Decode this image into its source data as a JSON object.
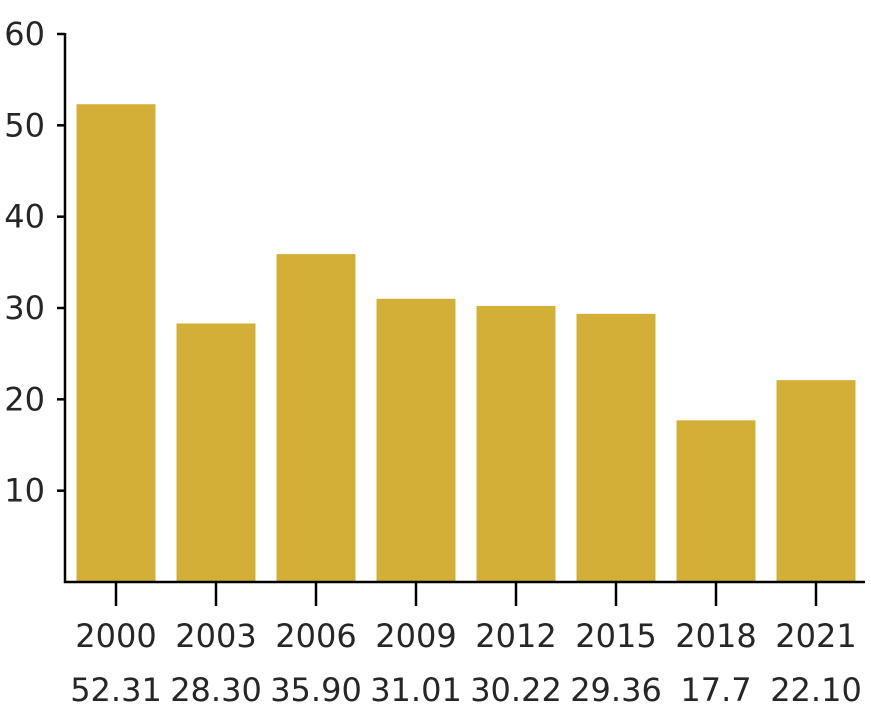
{
  "chart_data": {
    "type": "bar",
    "categories": [
      "2000",
      "2003",
      "2006",
      "2009",
      "2012",
      "2015",
      "2018",
      "2021"
    ],
    "category_value_labels": [
      "52.31",
      "28.30",
      "35.90",
      "31.01",
      "30.22",
      "29.36",
      "17.7",
      "22.10"
    ],
    "values": [
      52.31,
      28.3,
      35.9,
      31.01,
      30.22,
      29.36,
      17.7,
      22.1
    ],
    "title": "",
    "xlabel": "",
    "ylabel": "",
    "ylim": [
      0,
      60
    ],
    "yticks": [
      10,
      20,
      30,
      40,
      50,
      60
    ],
    "bar_color": "#D4AF37",
    "grid": false,
    "legend": "none"
  }
}
